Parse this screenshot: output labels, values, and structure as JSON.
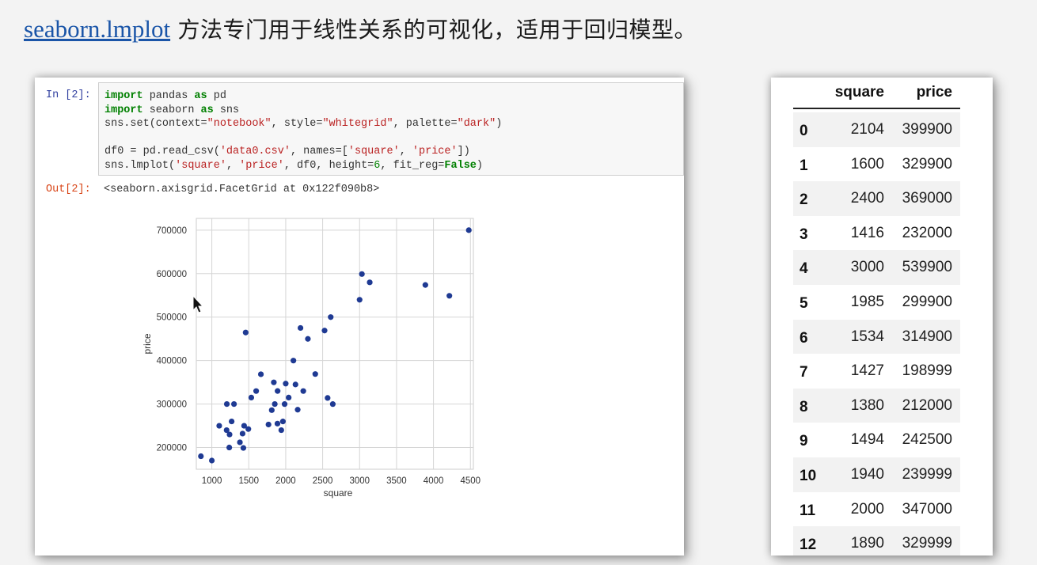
{
  "heading": {
    "link_text": "seaborn.lmplot",
    "rest_text": " 方法专门用于线性关系的可视化，适用于回归模型。"
  },
  "notebook": {
    "in_prompt": "In [2]:",
    "out_prompt": "Out[2]:",
    "code_lines": [
      "import pandas as pd",
      "import seaborn as sns",
      "sns.set(context=\"notebook\", style=\"whitegrid\", palette=\"dark\")",
      "",
      "df0 = pd.read_csv('data0.csv', names=['square', 'price'])",
      "sns.lmplot('square', 'price', df0, height=6, fit_reg=False)"
    ],
    "output": "<seaborn.axisgrid.FacetGrid at 0x122f090b8>"
  },
  "chart_data": {
    "type": "scatter",
    "xlabel": "square",
    "ylabel": "price",
    "xlim": [
      790,
      4540
    ],
    "ylim": [
      150000,
      727000
    ],
    "xticks": [
      1000,
      1500,
      2000,
      2500,
      3000,
      3500,
      4000,
      4500
    ],
    "yticks": [
      200000,
      300000,
      400000,
      500000,
      600000,
      700000
    ],
    "grid": true,
    "color": "#1f3a93",
    "points": [
      [
        852,
        180000
      ],
      [
        1000,
        170000
      ],
      [
        1100,
        250000
      ],
      [
        1200,
        240000
      ],
      [
        1236,
        200000
      ],
      [
        1203,
        300000
      ],
      [
        1240,
        230000
      ],
      [
        1268,
        260000
      ],
      [
        1300,
        300000
      ],
      [
        1380,
        212000
      ],
      [
        1416,
        232000
      ],
      [
        1427,
        198999
      ],
      [
        1437,
        250000
      ],
      [
        1458,
        464500
      ],
      [
        1494,
        242500
      ],
      [
        1534,
        314900
      ],
      [
        1600,
        329900
      ],
      [
        1664,
        368500
      ],
      [
        1767,
        252900
      ],
      [
        1811,
        285900
      ],
      [
        1839,
        349900
      ],
      [
        1852,
        300000
      ],
      [
        1888,
        255000
      ],
      [
        1890,
        329999
      ],
      [
        1940,
        239999
      ],
      [
        1962,
        259900
      ],
      [
        1985,
        299900
      ],
      [
        2000,
        347000
      ],
      [
        2040,
        314900
      ],
      [
        2104,
        399900
      ],
      [
        2132,
        345000
      ],
      [
        2162,
        287000
      ],
      [
        2200,
        475000
      ],
      [
        2238,
        329900
      ],
      [
        2300,
        449900
      ],
      [
        2400,
        369000
      ],
      [
        2526,
        469000
      ],
      [
        2567,
        314000
      ],
      [
        2609,
        499998
      ],
      [
        2637,
        299900
      ],
      [
        3000,
        539900
      ],
      [
        3031,
        599000
      ],
      [
        3137,
        579900
      ],
      [
        3890,
        573900
      ],
      [
        4215,
        549000
      ],
      [
        4478,
        699900
      ]
    ]
  },
  "table": {
    "columns": [
      "square",
      "price"
    ],
    "rows": [
      [
        "0",
        "2104",
        "399900"
      ],
      [
        "1",
        "1600",
        "329900"
      ],
      [
        "2",
        "2400",
        "369000"
      ],
      [
        "3",
        "1416",
        "232000"
      ],
      [
        "4",
        "3000",
        "539900"
      ],
      [
        "5",
        "1985",
        "299900"
      ],
      [
        "6",
        "1534",
        "314900"
      ],
      [
        "7",
        "1427",
        "198999"
      ],
      [
        "8",
        "1380",
        "212000"
      ],
      [
        "9",
        "1494",
        "242500"
      ],
      [
        "10",
        "1940",
        "239999"
      ],
      [
        "11",
        "2000",
        "347000"
      ],
      [
        "12",
        "1890",
        "329999"
      ]
    ]
  },
  "colors": {
    "link": "#1a55a8",
    "keyword": "#008000",
    "string": "#ba2121",
    "in_prompt": "#303f9f",
    "out_prompt": "#d84315"
  }
}
